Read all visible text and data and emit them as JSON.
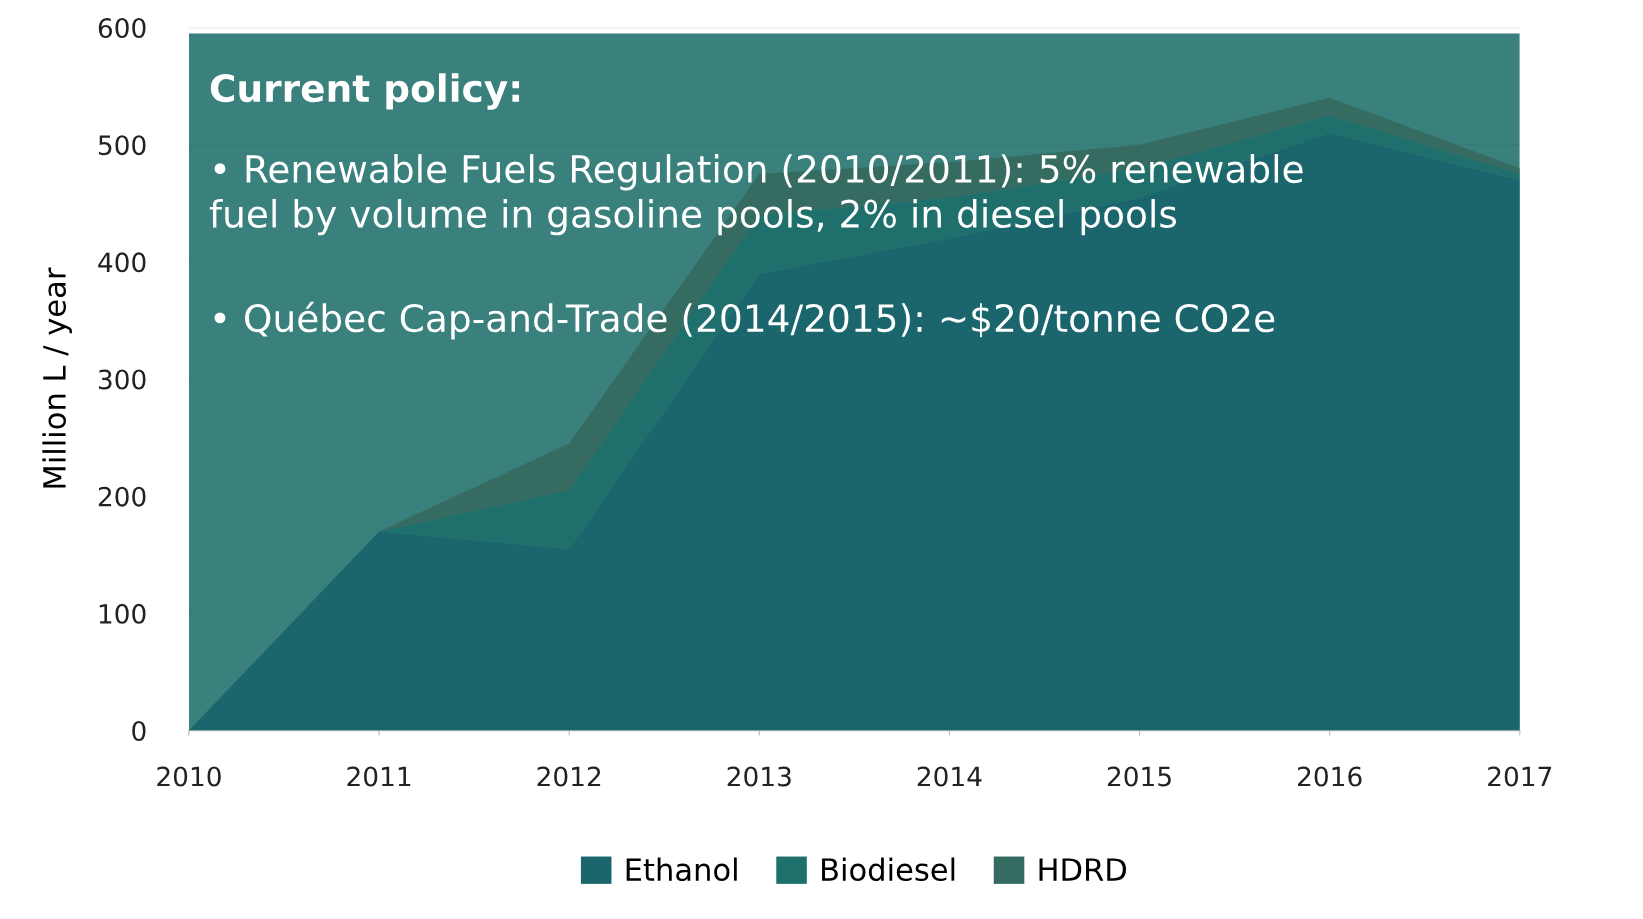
{
  "chart_data": {
    "type": "area",
    "stacked": true,
    "ylabel": "Million L / year",
    "x": [
      2010,
      2011,
      2012,
      2013,
      2014,
      2015,
      2016,
      2017
    ],
    "series": [
      {
        "name": "Ethanol",
        "color": "#1b666d",
        "values": [
          0,
          170,
          155,
          390,
          420,
          455,
          510,
          470
        ]
      },
      {
        "name": "Biodiesel",
        "color": "#1f706c",
        "values": [
          0,
          0,
          50,
          50,
          35,
          25,
          15,
          5
        ]
      },
      {
        "name": "HDRD",
        "color": "#356b60",
        "values": [
          0,
          0,
          40,
          35,
          30,
          20,
          15,
          5
        ]
      }
    ],
    "xlim": [
      2010,
      2017
    ],
    "xticks": [
      2010,
      2011,
      2012,
      2013,
      2014,
      2015,
      2016,
      2017
    ],
    "ylim": [
      0,
      600
    ],
    "yticks": [
      0,
      100,
      200,
      300,
      400,
      500,
      600
    ],
    "grid": "y",
    "legend": "bottom",
    "bands": [
      {
        "axis": "y",
        "from": 0,
        "to": 595,
        "color": "#1f6e6b"
      }
    ],
    "annotations": [
      "Current policy:",
      "• Renewable Fuels Regulation (2010/2011): 5% renewable\nfuel by volume in gasoline pools, 2% in diesel pools",
      "• Québec Cap-and-Trade (2014/2015): ~$20/tonne CO2e"
    ]
  }
}
